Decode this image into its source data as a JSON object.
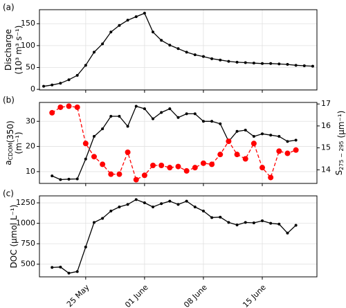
{
  "chart_data": [
    {
      "type": "line",
      "panel_label": "(a)",
      "ylabel": [
        [
          "Discharge"
        ],
        [
          "(10³ m³ s⁻¹)"
        ]
      ],
      "categories": [
        null,
        null,
        null,
        null,
        null,
        "25 May",
        null,
        null,
        null,
        null,
        null,
        null,
        "01 June",
        null,
        null,
        null,
        null,
        null,
        null,
        "08 June",
        null,
        null,
        null,
        null,
        null,
        null,
        "15 June",
        null,
        null,
        null,
        null,
        null,
        null
      ],
      "series": [
        {
          "color": "#000000",
          "marker": 2,
          "dashed": false,
          "values": [
            7,
            10,
            14,
            22,
            32,
            55,
            85,
            104,
            131,
            146,
            158,
            166,
            174,
            131,
            112,
            101,
            93,
            85,
            79,
            75,
            70,
            67,
            64,
            62,
            61,
            60,
            59,
            59,
            58,
            57,
            55,
            54,
            53
          ]
        }
      ],
      "ylim": [
        -1.4,
        182
      ],
      "yticks": [
        0,
        50,
        100,
        150
      ],
      "grid": true
    },
    {
      "type": "line",
      "panel_label": "(b)",
      "ylabel": [
        [
          "a",
          {
            "sub": "CDOM"
          },
          "(350)"
        ],
        [
          "(m⁻¹)"
        ]
      ],
      "y2label": [
        [
          "S",
          {
            "sub": "275 − 295"
          },
          " (μm⁻¹)"
        ]
      ],
      "y2label_color": "#ff0000",
      "categories": [
        null,
        null,
        null,
        null,
        null,
        "25 May",
        null,
        null,
        null,
        null,
        null,
        null,
        "01 June",
        null,
        null,
        null,
        null,
        null,
        null,
        "08 June",
        null,
        null,
        null,
        null,
        null,
        null,
        "15 June",
        null,
        null,
        null,
        null,
        null,
        null
      ],
      "series": [
        {
          "color": "#000000",
          "marker": 2,
          "dashed": false,
          "values": [
            null,
            8.3,
            6.8,
            7,
            7.1,
            15,
            24,
            27,
            32,
            32,
            28,
            36,
            35,
            31,
            33.5,
            35,
            31.5,
            33,
            33,
            30,
            30,
            29,
            22,
            26,
            26.5,
            24,
            25,
            24.5,
            24,
            22,
            22.5,
            null,
            null
          ]
        },
        {
          "color": "#ff0000",
          "marker": 4,
          "dashed": true,
          "axis": "y2",
          "values": [
            null,
            16.6,
            16.85,
            16.9,
            16.85,
            15.2,
            14.6,
            14.25,
            13.8,
            13.8,
            14.8,
            13.55,
            13.75,
            14.2,
            14.2,
            14.1,
            14.15,
            13.95,
            14.1,
            14.3,
            14.25,
            14.7,
            15.3,
            14.7,
            14.5,
            15.2,
            14.1,
            13.65,
            14.85,
            14.75,
            14.9,
            null,
            null
          ]
        }
      ],
      "ylim": [
        5.3,
        37.5
      ],
      "yticks": [
        10,
        20,
        30
      ],
      "y2lim": [
        13.38,
        17.07
      ],
      "y2ticks": [
        14,
        15,
        16,
        17
      ],
      "grid": true
    },
    {
      "type": "line",
      "panel_label": "(c)",
      "ylabel": [
        [
          "DOC (μmol L⁻¹)"
        ]
      ],
      "categories": [
        null,
        null,
        null,
        null,
        null,
        "25 May",
        null,
        null,
        null,
        null,
        null,
        null,
        "01 June",
        null,
        null,
        null,
        null,
        null,
        null,
        "08 June",
        null,
        null,
        null,
        null,
        null,
        null,
        "15 June",
        null,
        null,
        null,
        null,
        null,
        null
      ],
      "series": [
        {
          "color": "#000000",
          "marker": 2,
          "dashed": false,
          "values": [
            null,
            460,
            465,
            390,
            410,
            710,
            1010,
            1060,
            1150,
            1200,
            1230,
            1290,
            1250,
            1200,
            1240,
            1270,
            1230,
            1270,
            1200,
            1150,
            1070,
            1075,
            1010,
            980,
            1010,
            1005,
            1030,
            1000,
            990,
            880,
            975,
            null,
            null
          ]
        }
      ],
      "ylim": [
        345,
        1335
      ],
      "yticks": [
        500,
        750,
        1000,
        1250
      ],
      "grid": true,
      "show_xlabels": true
    }
  ]
}
